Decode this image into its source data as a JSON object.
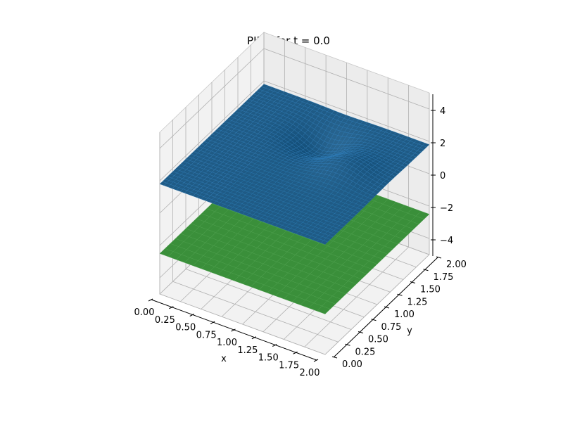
{
  "chart_data": {
    "type": "surface3d",
    "title": "PINN for t = 0.0",
    "xlabel": "x",
    "ylabel": "y",
    "zlabel": "",
    "xlim": [
      0,
      2
    ],
    "ylim": [
      0,
      2
    ],
    "zlim": [
      -5,
      5
    ],
    "xticks": [
      "0.00",
      "0.25",
      "0.50",
      "0.75",
      "1.00",
      "1.25",
      "1.50",
      "1.75",
      "2.00"
    ],
    "yticks": [
      "0.00",
      "0.25",
      "0.50",
      "0.75",
      "1.00",
      "1.25",
      "1.50",
      "1.75",
      "2.00"
    ],
    "zticks": [
      "−4",
      "−2",
      "0",
      "2",
      "4"
    ],
    "grid": true,
    "surfaces": [
      {
        "color": "#2ca02c",
        "z_level": -2.5,
        "shape": "flat plane"
      },
      {
        "color": "#1f77b4",
        "z_level": 1.8,
        "shape": "nearly flat with a dip near x 1.0, y 1.5 and a bump near x 1.5, y 1.2"
      }
    ],
    "colors": {
      "green_surface": "#3a8f3a",
      "blue_surface": "#1f5b86",
      "blue_edge": "#2b7bb9"
    }
  }
}
